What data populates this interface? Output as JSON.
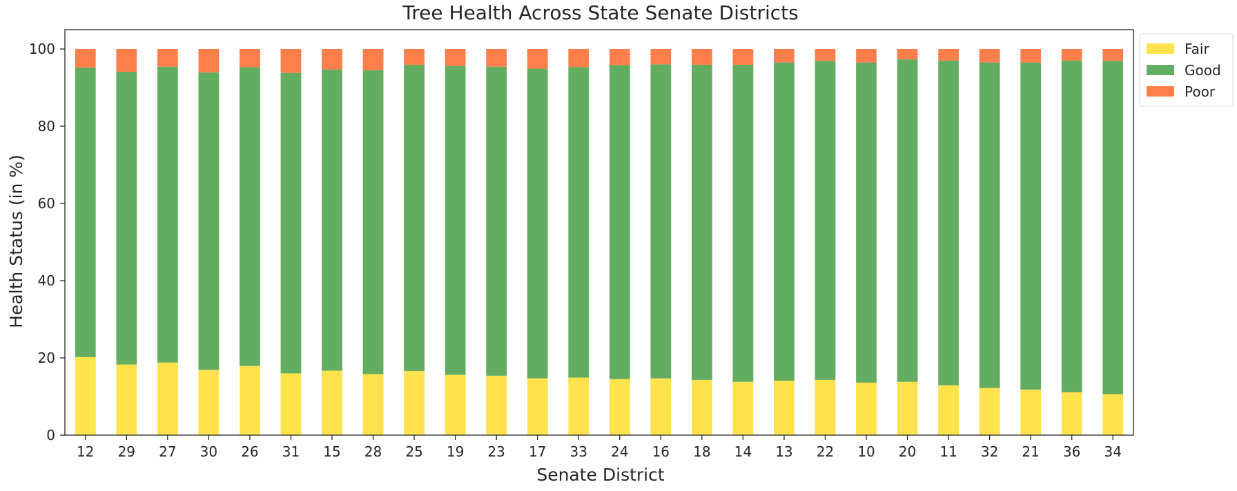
{
  "chart_data": {
    "type": "bar",
    "stacked": true,
    "title": "Tree Health Across State Senate Districts",
    "xlabel": "Senate District",
    "ylabel": "Health Status (in %)",
    "ylim": [
      0,
      105
    ],
    "yticks": [
      0,
      20,
      40,
      60,
      80,
      100
    ],
    "grid": false,
    "legend_position": "outside-top-right",
    "categories": [
      "12",
      "29",
      "27",
      "30",
      "26",
      "31",
      "15",
      "28",
      "25",
      "19",
      "23",
      "17",
      "33",
      "24",
      "16",
      "18",
      "14",
      "13",
      "22",
      "10",
      "20",
      "11",
      "32",
      "21",
      "36",
      "34"
    ],
    "series": [
      {
        "name": "Fair",
        "color": "#ffe24c",
        "values": [
          20.2,
          18.3,
          18.8,
          16.9,
          17.9,
          16.0,
          16.7,
          15.8,
          16.6,
          15.6,
          15.4,
          14.7,
          14.9,
          14.5,
          14.7,
          14.3,
          13.8,
          14.1,
          14.3,
          13.6,
          13.8,
          12.9,
          12.2,
          11.8,
          11.1,
          10.6
        ]
      },
      {
        "name": "Good",
        "color": "#63ad63",
        "values": [
          75.0,
          75.8,
          76.6,
          77.0,
          77.4,
          77.8,
          78.0,
          78.7,
          79.3,
          80.0,
          80.0,
          80.2,
          80.4,
          81.3,
          81.3,
          81.6,
          82.1,
          82.4,
          82.6,
          82.9,
          83.5,
          84.1,
          84.3,
          84.7,
          85.9,
          86.3
        ]
      },
      {
        "name": "Poor",
        "color": "#ff7f4c",
        "values": [
          4.8,
          5.9,
          4.6,
          6.1,
          4.7,
          6.2,
          5.3,
          5.5,
          4.1,
          4.4,
          4.6,
          5.1,
          4.7,
          4.2,
          4.0,
          4.1,
          4.1,
          3.5,
          3.1,
          3.5,
          2.7,
          3.0,
          3.5,
          3.5,
          3.0,
          3.1
        ]
      }
    ]
  }
}
